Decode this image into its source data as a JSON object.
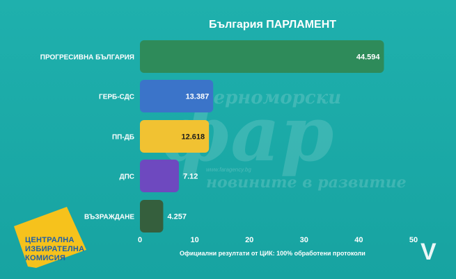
{
  "header": {
    "title": "България ПАРЛАМЕНТ"
  },
  "chart_data": {
    "type": "bar",
    "orientation": "horizontal",
    "title": "България ПАРЛАМЕНТ",
    "categories": [
      "ПРОГРЕСИВНА БЪЛГАРИЯ",
      "ГЕРБ-СДС",
      "ПП-ДБ",
      "ДПС",
      "ВЪЗРАЖДАНЕ"
    ],
    "values": [
      44.594,
      13.387,
      12.618,
      7.12,
      4.257
    ],
    "value_labels": [
      "44.594",
      "13.387",
      "12.618",
      "7.12",
      "4.257"
    ],
    "colors": [
      "#2e8b5a",
      "#3b74c9",
      "#f1c232",
      "#6e49bf",
      "#355f3d"
    ],
    "xlim": [
      0,
      50
    ],
    "x_ticks": [
      "0",
      "10",
      "20",
      "30",
      "40",
      "50"
    ],
    "grid": false,
    "legend": "none"
  },
  "footer": {
    "note": "Официални резултати от ЦИК: 100% обработени протоколи"
  },
  "logo": {
    "lines": [
      "ЦЕНТРАЛНА",
      "ИЗБИРАТЕЛНА",
      "КОМИСИЯ"
    ],
    "shape_color": "#f6c21c",
    "text_color": "#1e5fa8"
  },
  "corner_logo": {
    "text": "V"
  },
  "watermark": {
    "top": "черноморски",
    "big": "фар",
    "site": "www.faragency.bg",
    "bottom": "новините в развитие"
  }
}
